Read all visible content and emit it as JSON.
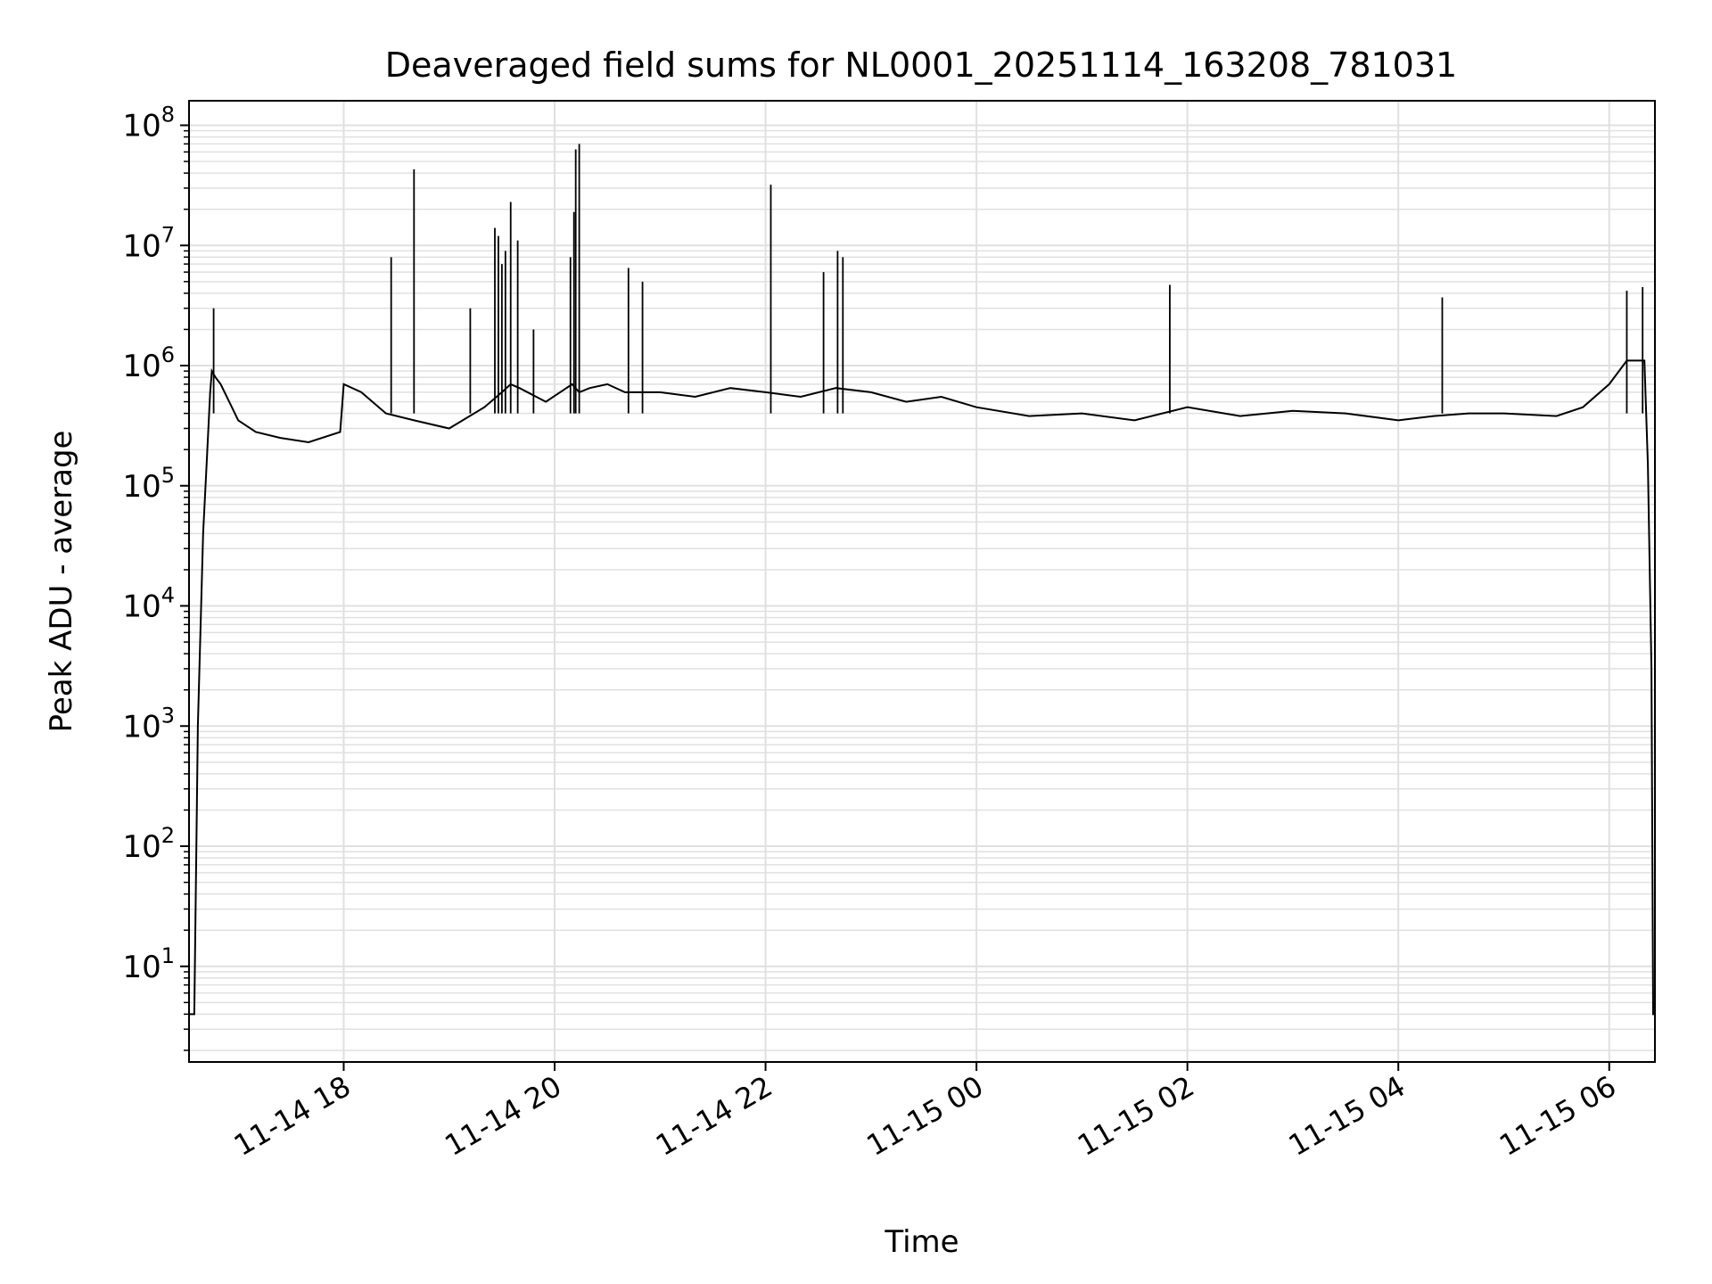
{
  "chart_data": {
    "type": "line",
    "title": "Deaveraged field sums for NL0001_20251114_163208_781031",
    "xlabel": "Time",
    "ylabel": "Peak ADU - average",
    "yscale": "log",
    "ylim": [
      1.6,
      160000000
    ],
    "xlim": [
      "2025-11-14 16:32",
      "2025-11-15 06:26"
    ],
    "grid": true,
    "line_color": "#000000",
    "grid_color": "#e0e0e0",
    "x_ticks": [
      {
        "label": "11-14 18",
        "value": "2025-11-14 18:00"
      },
      {
        "label": "11-14 20",
        "value": "2025-11-14 20:00"
      },
      {
        "label": "11-14 22",
        "value": "2025-11-14 22:00"
      },
      {
        "label": "11-15 00",
        "value": "2025-11-15 00:00"
      },
      {
        "label": "11-15 02",
        "value": "2025-11-15 02:00"
      },
      {
        "label": "11-15 04",
        "value": "2025-11-15 04:00"
      },
      {
        "label": "11-15 06",
        "value": "2025-11-15 06:00"
      }
    ],
    "y_ticks": [
      {
        "base": "10",
        "exp": "1",
        "value": 10
      },
      {
        "base": "10",
        "exp": "2",
        "value": 100
      },
      {
        "base": "10",
        "exp": "3",
        "value": 1000
      },
      {
        "base": "10",
        "exp": "4",
        "value": 10000
      },
      {
        "base": "10",
        "exp": "5",
        "value": 100000
      },
      {
        "base": "10",
        "exp": "6",
        "value": 1000000
      },
      {
        "base": "10",
        "exp": "7",
        "value": 10000000
      },
      {
        "base": "10",
        "exp": "8",
        "value": 100000000
      }
    ],
    "series": [
      {
        "x": [
          "2025-11-14 16:32",
          "2025-11-14 16:34",
          "2025-11-14 16:35",
          "2025-11-14 16:37",
          "2025-11-14 16:40",
          "2025-11-14 16:42",
          "2025-11-14 16:44",
          "2025-11-14 16:45",
          "2025-11-14 16:47",
          "2025-11-14 16:50",
          "2025-11-14 17:00",
          "2025-11-14 17:10",
          "2025-11-14 17:24",
          "2025-11-14 17:40",
          "2025-11-14 17:58",
          "2025-11-14 18:00",
          "2025-11-14 18:10",
          "2025-11-14 18:24",
          "2025-11-14 18:40",
          "2025-11-14 19:00",
          "2025-11-14 19:20",
          "2025-11-14 19:30",
          "2025-11-14 19:35",
          "2025-11-14 19:40",
          "2025-11-14 19:55",
          "2025-11-14 20:10",
          "2025-11-14 20:14",
          "2025-11-14 20:20",
          "2025-11-14 20:30",
          "2025-11-14 20:40",
          "2025-11-14 21:00",
          "2025-11-14 21:20",
          "2025-11-14 21:40",
          "2025-11-14 22:00",
          "2025-11-14 22:20",
          "2025-11-14 22:40",
          "2025-11-14 23:00",
          "2025-11-14 23:20",
          "2025-11-14 23:40",
          "2025-11-15 00:00",
          "2025-11-15 00:30",
          "2025-11-15 01:00",
          "2025-11-15 01:30",
          "2025-11-15 02:00",
          "2025-11-15 02:30",
          "2025-11-15 03:00",
          "2025-11-15 03:30",
          "2025-11-15 04:00",
          "2025-11-15 04:20",
          "2025-11-15 04:40",
          "2025-11-15 05:00",
          "2025-11-15 05:30",
          "2025-11-15 05:45",
          "2025-11-15 06:00",
          "2025-11-15 06:10",
          "2025-11-15 06:20",
          "2025-11-15 06:22",
          "2025-11-15 06:24",
          "2025-11-15 06:25",
          "2025-11-15 06:26"
        ],
        "y": [
          4,
          4,
          4,
          1000,
          40000,
          150000,
          600000,
          900000,
          800000,
          700000,
          350000,
          280000,
          250000,
          230000,
          280000,
          700000,
          600000,
          400000,
          350000,
          300000,
          450000,
          600000,
          700000,
          650000,
          500000,
          700000,
          600000,
          650000,
          700000,
          600000,
          600000,
          550000,
          650000,
          600000,
          550000,
          650000,
          600000,
          500000,
          550000,
          450000,
          380000,
          400000,
          350000,
          450000,
          380000,
          420000,
          400000,
          350000,
          380000,
          400000,
          400000,
          380000,
          450000,
          700000,
          1100000,
          1100000,
          150000,
          3000,
          4,
          4
        ]
      }
    ],
    "spikes": [
      {
        "x": "2025-11-14 16:46",
        "y": 3000000
      },
      {
        "x": "2025-11-14 18:27",
        "y": 8000000
      },
      {
        "x": "2025-11-14 18:40",
        "y": 43000000
      },
      {
        "x": "2025-11-14 19:12",
        "y": 3000000
      },
      {
        "x": "2025-11-14 19:26",
        "y": 14000000
      },
      {
        "x": "2025-11-14 19:28",
        "y": 12000000
      },
      {
        "x": "2025-11-14 19:30",
        "y": 7000000
      },
      {
        "x": "2025-11-14 19:32",
        "y": 9000000
      },
      {
        "x": "2025-11-14 19:35",
        "y": 23000000
      },
      {
        "x": "2025-11-14 19:39",
        "y": 11000000
      },
      {
        "x": "2025-11-14 19:48",
        "y": 2000000
      },
      {
        "x": "2025-11-14 20:09",
        "y": 8000000
      },
      {
        "x": "2025-11-14 20:11",
        "y": 19000000
      },
      {
        "x": "2025-11-14 20:12",
        "y": 63000000
      },
      {
        "x": "2025-11-14 20:14",
        "y": 70000000
      },
      {
        "x": "2025-11-14 20:42",
        "y": 6500000
      },
      {
        "x": "2025-11-14 20:50",
        "y": 5000000
      },
      {
        "x": "2025-11-14 22:03",
        "y": 32000000
      },
      {
        "x": "2025-11-14 22:33",
        "y": 6000000
      },
      {
        "x": "2025-11-14 22:41",
        "y": 9000000
      },
      {
        "x": "2025-11-14 22:44",
        "y": 8000000
      },
      {
        "x": "2025-11-15 01:50",
        "y": 4700000
      },
      {
        "x": "2025-11-15 04:25",
        "y": 3700000
      },
      {
        "x": "2025-11-15 06:10",
        "y": 4200000
      },
      {
        "x": "2025-11-15 06:19",
        "y": 4500000
      }
    ]
  }
}
